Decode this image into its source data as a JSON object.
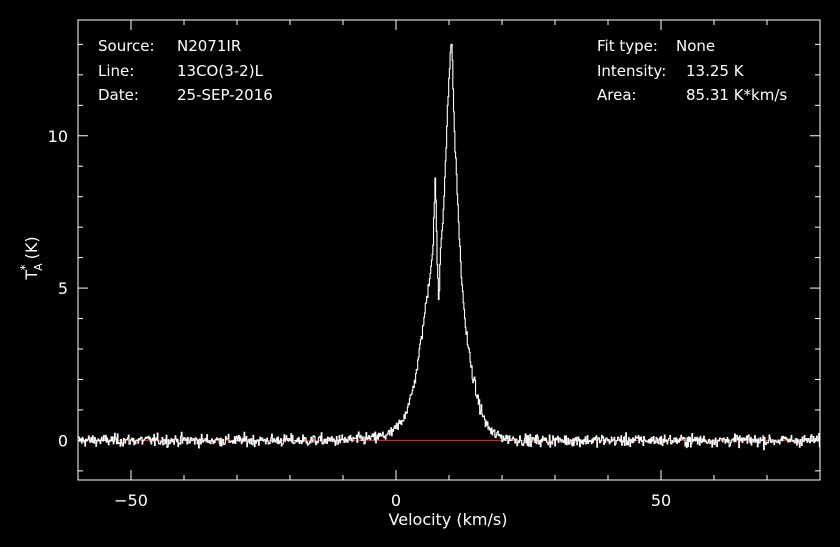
{
  "info_left": [
    {
      "label": "Source:",
      "value": "N2071IR"
    },
    {
      "label": "Line:",
      "value": "13CO(3-2)L"
    },
    {
      "label": "Date:",
      "value": "25-SEP-2016"
    }
  ],
  "info_right": [
    {
      "label": "Fit type:",
      "value": "None"
    },
    {
      "label": "Intensity:",
      "value": "13.25 K"
    },
    {
      "label": "Area:",
      "value": "85.31 K*km/s"
    }
  ],
  "colors": {
    "background": "#000000",
    "axes": "#ffffff",
    "spectrum": "#ffffff",
    "baseline": "#ff2020"
  },
  "chart_data": {
    "type": "line",
    "xlabel": "Velocity (km/s)",
    "ylabel": "T_A* (K)",
    "xlim": [
      -60,
      80
    ],
    "ylim": [
      -1.3,
      13.8
    ],
    "xticks": [
      -50,
      0,
      50
    ],
    "yticks": [
      0,
      5,
      10
    ],
    "grid": false,
    "baseline_y": 0,
    "noise_rms": 0.17,
    "series": [
      {
        "points": [
          [
            -60,
            0.0
          ],
          [
            -10,
            0.0
          ],
          [
            -4,
            0.08
          ],
          [
            -1,
            0.22
          ],
          [
            0,
            0.4
          ],
          [
            1,
            0.6
          ],
          [
            2,
            1.0
          ],
          [
            3,
            1.5
          ],
          [
            4,
            2.4
          ],
          [
            5,
            3.6
          ],
          [
            6,
            4.9
          ],
          [
            7,
            6.3
          ],
          [
            7.4,
            8.7
          ],
          [
            7.8,
            5.8
          ],
          [
            8.1,
            4.4
          ],
          [
            8.4,
            6.3
          ],
          [
            8.8,
            7.1
          ],
          [
            9.4,
            9.3
          ],
          [
            10.0,
            11.9
          ],
          [
            10.5,
            13.25
          ],
          [
            11.0,
            10.3
          ],
          [
            11.6,
            8.0
          ],
          [
            12.3,
            5.5
          ],
          [
            13.2,
            3.6
          ],
          [
            14.2,
            2.4
          ],
          [
            15.2,
            1.5
          ],
          [
            16.2,
            0.9
          ],
          [
            17.3,
            0.45
          ],
          [
            18.5,
            0.2
          ],
          [
            21,
            0.06
          ],
          [
            25,
            0.0
          ],
          [
            80,
            0.0
          ]
        ]
      }
    ]
  }
}
